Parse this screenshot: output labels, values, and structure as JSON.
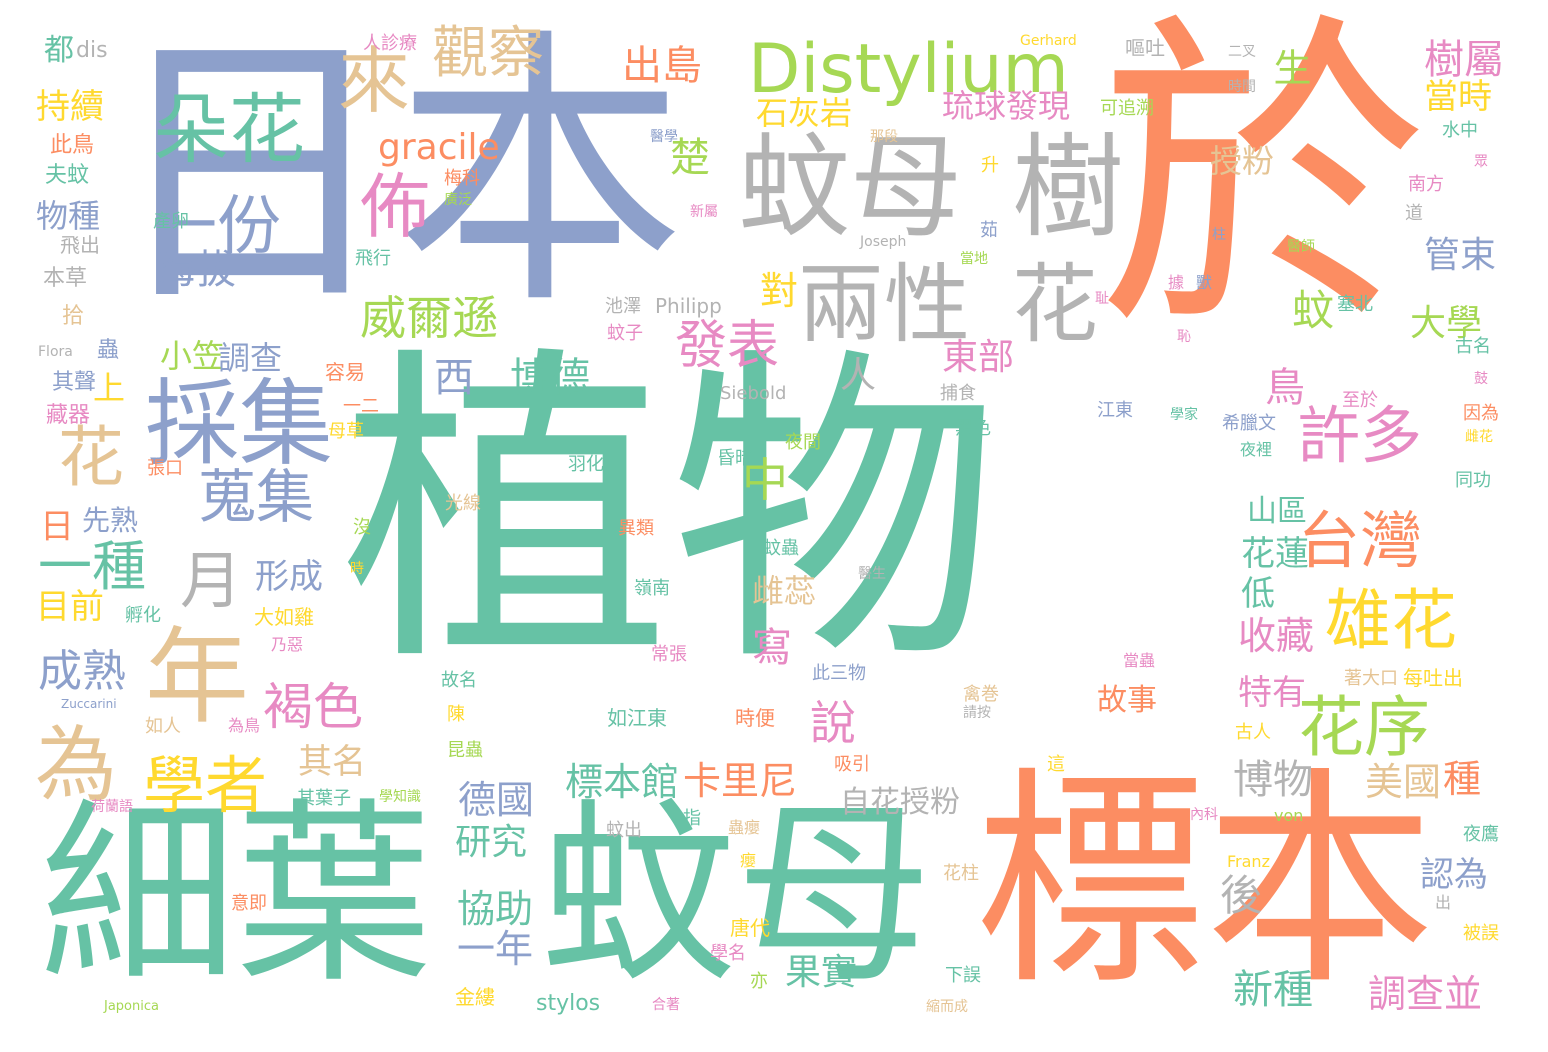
{
  "palette": {
    "green": "#66c2a5",
    "orange": "#fc8d62",
    "blue": "#8da0cb",
    "pink": "#e78ac3",
    "lime": "#a6d854",
    "yellow": "#ffd92f",
    "tan": "#e5c494",
    "gray": "#b3b3b3"
  },
  "words": [
    {
      "text": "植物",
      "color": "green"
    },
    {
      "text": "日本",
      "color": "blue"
    },
    {
      "text": "於",
      "color": "orange"
    },
    {
      "text": "細葉",
      "color": "green"
    },
    {
      "text": "蚊母",
      "color": "green"
    },
    {
      "text": "標本",
      "color": "orange"
    },
    {
      "text": "蚊母",
      "color": "gray"
    },
    {
      "text": "樹",
      "color": "gray"
    },
    {
      "text": "Distylium",
      "color": "lime"
    },
    {
      "text": "採集",
      "color": "blue"
    },
    {
      "text": "兩性",
      "color": "gray"
    },
    {
      "text": "花",
      "color": "gray"
    },
    {
      "text": "朵花",
      "color": "green"
    },
    {
      "text": "一份",
      "color": "blue"
    },
    {
      "text": "年",
      "color": "tan"
    },
    {
      "text": "為",
      "color": "tan"
    },
    {
      "text": "台灣",
      "color": "orange"
    },
    {
      "text": "許多",
      "color": "pink"
    },
    {
      "text": "雄花",
      "color": "yellow"
    },
    {
      "text": "花序",
      "color": "lime"
    },
    {
      "text": "學者",
      "color": "yellow"
    },
    {
      "text": "來",
      "color": "tan"
    },
    {
      "text": "觀察",
      "color": "tan"
    },
    {
      "text": "佈",
      "color": "pink"
    },
    {
      "text": "花",
      "color": "tan"
    },
    {
      "text": "蒐集",
      "color": "blue"
    },
    {
      "text": "一種",
      "color": "green"
    },
    {
      "text": "月",
      "color": "gray"
    },
    {
      "text": "發表",
      "color": "pink"
    },
    {
      "text": "威爾遜",
      "color": "lime"
    },
    {
      "text": "gracile",
      "color": "orange"
    },
    {
      "text": "西",
      "color": "blue"
    },
    {
      "text": "博德",
      "color": "green"
    },
    {
      "text": "中",
      "color": "lime"
    },
    {
      "text": "褐色",
      "color": "pink"
    },
    {
      "text": "成熟",
      "color": "blue"
    },
    {
      "text": "出島",
      "color": "orange"
    },
    {
      "text": "琉球發現",
      "color": "pink"
    },
    {
      "text": "石灰岩",
      "color": "yellow"
    },
    {
      "text": "楚",
      "color": "lime"
    },
    {
      "text": "海拔",
      "color": "blue"
    },
    {
      "text": "樹屬",
      "color": "pink"
    },
    {
      "text": "當時",
      "color": "yellow"
    },
    {
      "text": "生",
      "color": "lime"
    },
    {
      "text": "授粉",
      "color": "tan"
    },
    {
      "text": "管束",
      "color": "blue"
    },
    {
      "text": "大學",
      "color": "lime"
    },
    {
      "text": "蚊",
      "color": "lime"
    },
    {
      "text": "東部",
      "color": "pink"
    },
    {
      "text": "小笠",
      "color": "lime"
    },
    {
      "text": "調查",
      "color": "blue"
    },
    {
      "text": "形成",
      "color": "blue"
    },
    {
      "text": "說",
      "color": "pink"
    },
    {
      "text": "卡里尼",
      "color": "orange"
    },
    {
      "text": "標本館",
      "color": "green"
    },
    {
      "text": "博物",
      "color": "gray"
    },
    {
      "text": "美國",
      "color": "tan"
    },
    {
      "text": "種",
      "color": "orange"
    },
    {
      "text": "對",
      "color": "yellow"
    },
    {
      "text": "寫",
      "color": "pink"
    },
    {
      "text": "雌蕊",
      "color": "tan"
    },
    {
      "text": "鳥",
      "color": "pink"
    },
    {
      "text": "人",
      "color": "gray"
    },
    {
      "text": "收藏",
      "color": "pink"
    },
    {
      "text": "特有",
      "color": "pink"
    },
    {
      "text": "故事",
      "color": "orange"
    },
    {
      "text": "花蓮",
      "color": "green"
    },
    {
      "text": "低",
      "color": "green"
    },
    {
      "text": "山區",
      "color": "green"
    },
    {
      "text": "研究",
      "color": "green"
    },
    {
      "text": "協助",
      "color": "green"
    },
    {
      "text": "一年",
      "color": "blue"
    },
    {
      "text": "德國",
      "color": "blue"
    },
    {
      "text": "其名",
      "color": "tan"
    },
    {
      "text": "目前",
      "color": "yellow"
    },
    {
      "text": "持續",
      "color": "yellow"
    },
    {
      "text": "自花授粉",
      "color": "gray"
    },
    {
      "text": "果實",
      "color": "green"
    },
    {
      "text": "新種",
      "color": "green"
    },
    {
      "text": "調查並",
      "color": "pink"
    },
    {
      "text": "認為",
      "color": "blue"
    },
    {
      "text": "後",
      "color": "gray"
    },
    {
      "text": "先熟",
      "color": "blue"
    },
    {
      "text": "日",
      "color": "orange"
    },
    {
      "text": "上",
      "color": "yellow"
    },
    {
      "text": "物種",
      "color": "blue"
    },
    {
      "text": "人診療",
      "color": "pink"
    },
    {
      "text": "dis",
      "color": "gray"
    },
    {
      "text": "都",
      "color": "green"
    },
    {
      "text": "此鳥",
      "color": "orange"
    },
    {
      "text": "夫蚊",
      "color": "green"
    },
    {
      "text": "飛出",
      "color": "gray"
    },
    {
      "text": "本草",
      "color": "gray"
    },
    {
      "text": "拾",
      "color": "tan"
    },
    {
      "text": "Flora",
      "color": "gray"
    },
    {
      "text": "蟲",
      "color": "blue"
    },
    {
      "text": "其聲",
      "color": "blue"
    },
    {
      "text": "藏器",
      "color": "pink"
    },
    {
      "text": "容易",
      "color": "orange"
    },
    {
      "text": "池澤",
      "color": "gray"
    },
    {
      "text": "Philipp",
      "color": "gray"
    },
    {
      "text": "蚊子",
      "color": "pink"
    },
    {
      "text": "Siebold",
      "color": "gray"
    },
    {
      "text": "捕食",
      "color": "gray"
    },
    {
      "text": "黑色",
      "color": "green"
    },
    {
      "text": "夜間",
      "color": "lime"
    },
    {
      "text": "昏暗",
      "color": "green"
    },
    {
      "text": "羽化",
      "color": "green"
    },
    {
      "text": "光線",
      "color": "tan"
    },
    {
      "text": "異類",
      "color": "orange"
    },
    {
      "text": "蚊蟲",
      "color": "green"
    },
    {
      "text": "嶺南",
      "color": "green"
    },
    {
      "text": "常張",
      "color": "pink"
    },
    {
      "text": "醫生",
      "color": "gray"
    },
    {
      "text": "張口",
      "color": "orange"
    },
    {
      "text": "沒",
      "color": "lime"
    },
    {
      "text": "時",
      "color": "yellow"
    },
    {
      "text": "孵化",
      "color": "green"
    },
    {
      "text": "大如雞",
      "color": "yellow"
    },
    {
      "text": "乃惡",
      "color": "pink"
    },
    {
      "text": "Zuccarini",
      "color": "blue"
    },
    {
      "text": "如人",
      "color": "tan"
    },
    {
      "text": "為鳥",
      "color": "pink"
    },
    {
      "text": "其葉子",
      "color": "green"
    },
    {
      "text": "學知識",
      "color": "lime"
    },
    {
      "text": "荷蘭語",
      "color": "pink"
    },
    {
      "text": "意即",
      "color": "orange"
    },
    {
      "text": "Japonica",
      "color": "lime"
    },
    {
      "text": "金縷",
      "color": "yellow"
    },
    {
      "text": "stylos",
      "color": "green"
    },
    {
      "text": "合著",
      "color": "pink"
    },
    {
      "text": "亦",
      "color": "lime"
    },
    {
      "text": "唐代",
      "color": "yellow"
    },
    {
      "text": "學名",
      "color": "pink"
    },
    {
      "text": "下誤",
      "color": "green"
    },
    {
      "text": "縮而成",
      "color": "tan"
    },
    {
      "text": "花柱",
      "color": "tan"
    },
    {
      "text": "蟲癭",
      "color": "tan"
    },
    {
      "text": "癭",
      "color": "yellow"
    },
    {
      "text": "蚊出",
      "color": "gray"
    },
    {
      "text": "指",
      "color": "green"
    },
    {
      "text": "如江東",
      "color": "green"
    },
    {
      "text": "時便",
      "color": "orange"
    },
    {
      "text": "吸引",
      "color": "orange"
    },
    {
      "text": "此三物",
      "color": "blue"
    },
    {
      "text": "故名",
      "color": "green"
    },
    {
      "text": "陳",
      "color": "yellow"
    },
    {
      "text": "昆蟲",
      "color": "lime"
    },
    {
      "text": "二",
      "color": "green"
    },
    {
      "text": "禽巻",
      "color": "tan"
    },
    {
      "text": "請按",
      "color": "gray"
    },
    {
      "text": "當蟲",
      "color": "pink"
    },
    {
      "text": "這",
      "color": "yellow"
    },
    {
      "text": "古人",
      "color": "yellow"
    },
    {
      "text": "著大口",
      "color": "tan"
    },
    {
      "text": "每吐出",
      "color": "yellow"
    },
    {
      "text": "Franz",
      "color": "yellow"
    },
    {
      "text": "von",
      "color": "lime"
    },
    {
      "text": "內科",
      "color": "pink"
    },
    {
      "text": "夜鷹",
      "color": "green"
    },
    {
      "text": "出",
      "color": "gray"
    },
    {
      "text": "被誤",
      "color": "yellow"
    },
    {
      "text": "Gerhard",
      "color": "yellow"
    },
    {
      "text": "嘔吐",
      "color": "gray"
    },
    {
      "text": "二叉",
      "color": "gray"
    },
    {
      "text": "時間",
      "color": "gray"
    },
    {
      "text": "可追溯",
      "color": "lime"
    },
    {
      "text": "醫學",
      "color": "blue"
    },
    {
      "text": "那段",
      "color": "tan"
    },
    {
      "text": "梅科",
      "color": "orange"
    },
    {
      "text": "廣泛",
      "color": "lime"
    },
    {
      "text": "新屬",
      "color": "pink"
    },
    {
      "text": "產卵",
      "color": "green"
    },
    {
      "text": "升",
      "color": "yellow"
    },
    {
      "text": "水中",
      "color": "green"
    },
    {
      "text": "眾",
      "color": "pink"
    },
    {
      "text": "南方",
      "color": "pink"
    },
    {
      "text": "道",
      "color": "gray"
    },
    {
      "text": "飛行",
      "color": "green"
    },
    {
      "text": "Joseph",
      "color": "gray"
    },
    {
      "text": "茹",
      "color": "blue"
    },
    {
      "text": "當地",
      "color": "lime"
    },
    {
      "text": "柱",
      "color": "blue"
    },
    {
      "text": "醫師",
      "color": "lime"
    },
    {
      "text": "獸",
      "color": "blue"
    },
    {
      "text": "據",
      "color": "pink"
    },
    {
      "text": "塞北",
      "color": "green"
    },
    {
      "text": "古名",
      "color": "green"
    },
    {
      "text": "耻",
      "color": "pink"
    },
    {
      "text": "恥",
      "color": "pink"
    },
    {
      "text": "鼓",
      "color": "pink"
    },
    {
      "text": "至於",
      "color": "pink"
    },
    {
      "text": "江東",
      "color": "blue"
    },
    {
      "text": "學家",
      "color": "green"
    },
    {
      "text": "希臘文",
      "color": "blue"
    },
    {
      "text": "夜裡",
      "color": "green"
    },
    {
      "text": "因為",
      "color": "orange"
    },
    {
      "text": "雌花",
      "color": "yellow"
    },
    {
      "text": "同功",
      "color": "green"
    },
    {
      "text": "一二",
      "color": "orange"
    },
    {
      "text": "母草",
      "color": "yellow"
    }
  ]
}
